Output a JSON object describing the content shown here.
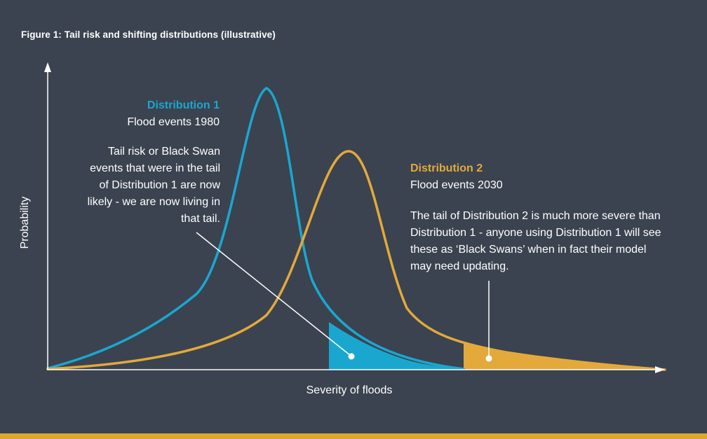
{
  "figure": {
    "title": "Figure 1: Tail risk and shifting distributions (illustrative)"
  },
  "axes": {
    "x_label": "Severity of floods",
    "y_label": "Probability"
  },
  "distribution1": {
    "title": "Distribution 1",
    "subtitle": "Flood events 1980",
    "note": "Tail risk or Black Swan events that were in the tail of Distribution 1 are now likely - we are now living in that tail.",
    "color": "#1aa7cf"
  },
  "distribution2": {
    "title": "Distribution 2",
    "subtitle": "Flood events 2030",
    "note": "The tail of Distribution 2 is much more severe than Distribution 1 - anyone using Distribution 1 will see these as ‘Black Swans’ when in fact their model may need updating.",
    "color": "#e3a93a"
  },
  "colors": {
    "background": "#3b4350",
    "axis": "#ffffff",
    "accent_bar": "#d9a833"
  }
}
